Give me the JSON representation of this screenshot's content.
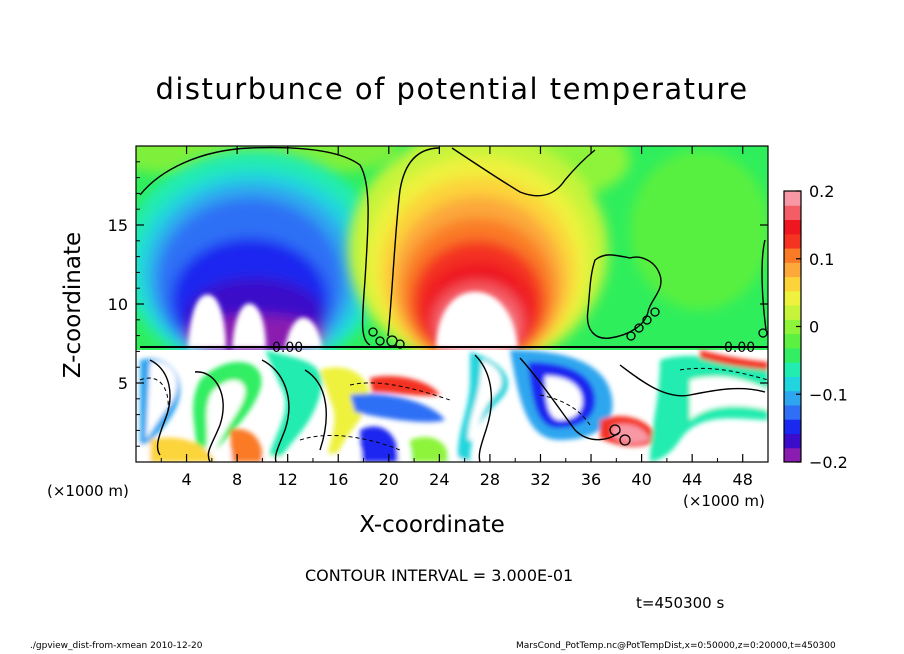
{
  "chart_data": {
    "type": "heatmap",
    "title": "disturbunce of potential temperature",
    "xlabel": "X-coordinate",
    "ylabel": "Z-coordinate",
    "x_unit": "(×1000 m)",
    "x_unit_right": "(×1000 m)",
    "xlim": [
      0,
      50
    ],
    "ylim": [
      0,
      20
    ],
    "x_ticks": [
      4,
      8,
      12,
      16,
      20,
      24,
      28,
      32,
      36,
      40,
      44,
      48
    ],
    "y_ticks": [
      5,
      10,
      15
    ],
    "colorbar": {
      "range": [
        -0.2,
        0.2
      ],
      "tick_values": [
        0.2,
        0.1,
        0,
        -0.1,
        -0.2
      ],
      "tick_labels": [
        "0.2",
        "0.1",
        "0",
        "−0.1",
        "−0.2"
      ],
      "colors": [
        "#8a1cb0",
        "#3b0cc9",
        "#1a28f0",
        "#2f6ff5",
        "#2ea6ef",
        "#20d5dd",
        "#22ecb0",
        "#33ee63",
        "#5cf040",
        "#8df43a",
        "#c6f43a",
        "#eef23e",
        "#fcd43a",
        "#fca83b",
        "#fa7a26",
        "#f43321",
        "#ee1720",
        "#f45d66",
        "#f898a4"
      ]
    },
    "contour_label": "0.00",
    "contour_interval_text": "CONTOUR INTERVAL = 3.000E-01",
    "time_text": "t=450300 s"
  },
  "footer": {
    "left": "./gpview_dist-from-xmean  2010-12-20",
    "right": "MarsCond_PotTemp.nc@PotTempDist,x=0:50000,z=0:20000,t=450300"
  }
}
